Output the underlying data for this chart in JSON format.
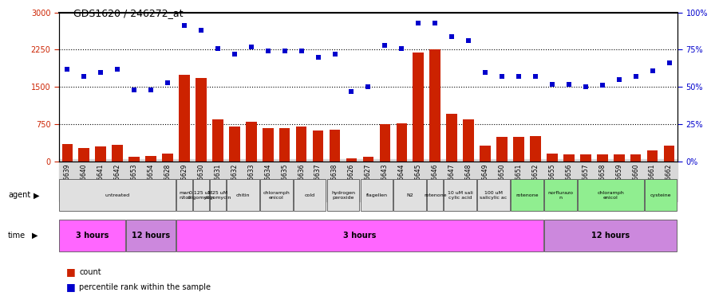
{
  "title": "GDS1620 / 246272_at",
  "samples": [
    "GSM85639",
    "GSM85640",
    "GSM85641",
    "GSM85642",
    "GSM85653",
    "GSM85654",
    "GSM85628",
    "GSM85629",
    "GSM85630",
    "GSM85631",
    "GSM85632",
    "GSM85633",
    "GSM85634",
    "GSM85635",
    "GSM85636",
    "GSM85637",
    "GSM85638",
    "GSM85626",
    "GSM85627",
    "GSM85643",
    "GSM85644",
    "GSM85645",
    "GSM85646",
    "GSM85647",
    "GSM85648",
    "GSM85649",
    "GSM85650",
    "GSM85651",
    "GSM85652",
    "GSM85655",
    "GSM85656",
    "GSM85657",
    "GSM85658",
    "GSM85659",
    "GSM85660",
    "GSM85661",
    "GSM85662"
  ],
  "counts": [
    350,
    270,
    300,
    330,
    100,
    110,
    160,
    1750,
    1680,
    850,
    700,
    800,
    680,
    680,
    700,
    620,
    640,
    70,
    100,
    750,
    770,
    2200,
    2250,
    960,
    850,
    320,
    490,
    490,
    510,
    160,
    150,
    140,
    145,
    150,
    145,
    220,
    320
  ],
  "percentiles": [
    62,
    57,
    60,
    62,
    48,
    48,
    53,
    91,
    88,
    76,
    72,
    77,
    74,
    74,
    74,
    70,
    72,
    47,
    50,
    78,
    76,
    93,
    93,
    84,
    81,
    60,
    57,
    57,
    57,
    52,
    52,
    50,
    51,
    55,
    57,
    61,
    66
  ],
  "bar_color": "#cc2200",
  "dot_color": "#0000cc",
  "left_ylim": [
    0,
    3000
  ],
  "right_ylim": [
    0,
    100
  ],
  "left_yticks": [
    0,
    750,
    1500,
    2250,
    3000
  ],
  "right_yticks": [
    0,
    25,
    50,
    75,
    100
  ],
  "agent_groups": [
    {
      "label": "untreated",
      "start": 0,
      "end": 7,
      "color": "#e0e0e0"
    },
    {
      "label": "man\nnitol",
      "start": 7,
      "end": 8,
      "color": "#e0e0e0"
    },
    {
      "label": "0.125 uM\noligomycin",
      "start": 8,
      "end": 9,
      "color": "#e0e0e0"
    },
    {
      "label": "1.25 uM\noligomycin",
      "start": 9,
      "end": 10,
      "color": "#e0e0e0"
    },
    {
      "label": "chitin",
      "start": 10,
      "end": 12,
      "color": "#e0e0e0"
    },
    {
      "label": "chloramph\nenicol",
      "start": 12,
      "end": 14,
      "color": "#e0e0e0"
    },
    {
      "label": "cold",
      "start": 14,
      "end": 16,
      "color": "#e0e0e0"
    },
    {
      "label": "hydrogen\nperoxide",
      "start": 16,
      "end": 18,
      "color": "#e0e0e0"
    },
    {
      "label": "flagellen",
      "start": 18,
      "end": 20,
      "color": "#e0e0e0"
    },
    {
      "label": "N2",
      "start": 20,
      "end": 22,
      "color": "#e0e0e0"
    },
    {
      "label": "rotenone",
      "start": 22,
      "end": 23,
      "color": "#e0e0e0"
    },
    {
      "label": "10 uM sali\ncylic acid",
      "start": 23,
      "end": 25,
      "color": "#e0e0e0"
    },
    {
      "label": "100 uM\nsalicylic ac",
      "start": 25,
      "end": 27,
      "color": "#e0e0e0"
    },
    {
      "label": "rotenone",
      "start": 27,
      "end": 29,
      "color": "#90ee90"
    },
    {
      "label": "norflurazo\nn",
      "start": 29,
      "end": 31,
      "color": "#90ee90"
    },
    {
      "label": "chloramph\nenicol",
      "start": 31,
      "end": 35,
      "color": "#90ee90"
    },
    {
      "label": "cysteine",
      "start": 35,
      "end": 37,
      "color": "#90ee90"
    }
  ],
  "time_groups": [
    {
      "label": "3 hours",
      "start": 0,
      "end": 4,
      "color": "#ff66ff"
    },
    {
      "label": "12 hours",
      "start": 4,
      "end": 7,
      "color": "#cc88dd"
    },
    {
      "label": "3 hours",
      "start": 7,
      "end": 29,
      "color": "#ff66ff"
    },
    {
      "label": "12 hours",
      "start": 29,
      "end": 37,
      "color": "#cc88dd"
    }
  ]
}
